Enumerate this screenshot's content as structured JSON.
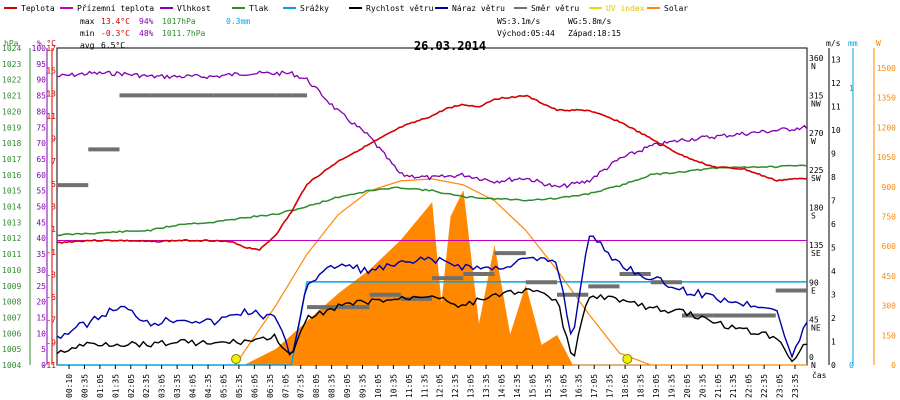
{
  "chart_data": {
    "type": "line",
    "title": "26.03.2014",
    "legend": [
      {
        "name": "Teplota",
        "color": "#d40000"
      },
      {
        "name": "Přízemní teplota",
        "color": "#c000c0"
      },
      {
        "name": "Vlhkost",
        "color": "#8000b0"
      },
      {
        "name": "Tlak",
        "color": "#2e8b2e"
      },
      {
        "name": "Srážky",
        "color": "#0aa0e0"
      },
      {
        "name": "Rychlost větru",
        "color": "#000000"
      },
      {
        "name": "Náraz větru",
        "color": "#0000aa"
      },
      {
        "name": "Směr větru",
        "color": "#707070"
      },
      {
        "name": "UV index",
        "color": "#e0e000"
      },
      {
        "name": "Solar",
        "color": "#ff8800"
      }
    ],
    "stats": {
      "max_label": "max",
      "max_temp": "13.4°C",
      "max_hum": "94%",
      "max_press": "1017hPa",
      "rain": "0.3mm",
      "min_label": "min",
      "min_temp": "-0.3°C",
      "min_hum": "48%",
      "min_press": "1011.7hPa",
      "avg_label": "avg",
      "avg_temp": "6.5°C",
      "ws": "WS:3.1m/s",
      "wg": "WG:5.8m/s",
      "sunrise": "Východ:05:44",
      "sunset": "Západ:18:15"
    },
    "left_axes": {
      "hpa": {
        "label": "hPa",
        "ticks": [
          "1024",
          "1023",
          "1022",
          "1021",
          "1020",
          "1019",
          "1018",
          "1017",
          "1016",
          "1015",
          "1014",
          "1013",
          "1012",
          "1011",
          "1010",
          "1009",
          "1008",
          "1007",
          "1006",
          "1005",
          "1004"
        ]
      },
      "pct": {
        "label": "%",
        "ticks": [
          "100",
          "95",
          "90",
          "85",
          "80",
          "75",
          "70",
          "65",
          "60",
          "55",
          "50",
          "45",
          "40",
          "35",
          "30",
          "25",
          "20",
          "15",
          "10",
          "5",
          "0"
        ]
      },
      "temp": {
        "label": "°C",
        "ticks": [
          "17",
          "15",
          "13",
          "11",
          "9",
          "7",
          "5",
          "3",
          "1",
          "-1",
          "-3",
          "-5",
          "-7",
          "-9",
          "-11"
        ]
      }
    },
    "right_axes": {
      "ms": {
        "label": "m/s",
        "ticks": [
          "13",
          "12",
          "11",
          "10",
          "9",
          "8",
          "7",
          "6",
          "5",
          "4",
          "3",
          "2",
          "1",
          "0"
        ]
      },
      "dir": {
        "ticks": [
          "360",
          "315",
          "270",
          "225",
          "180",
          "135",
          "90",
          "45",
          "0"
        ],
        "letters": [
          "N",
          "NW",
          "W",
          "SW",
          "S",
          "SE",
          "E",
          "NE",
          "N"
        ]
      },
      "mm": {
        "label": "mm",
        "ticks": [
          "1",
          "0"
        ]
      },
      "w": {
        "label": "W",
        "ticks": [
          "1500",
          "1350",
          "1200",
          "1050",
          "900",
          "750",
          "600",
          "450",
          "300",
          "150",
          "0"
        ]
      }
    },
    "xlabel": "čas",
    "x_ticks": [
      "00:10",
      "00:35",
      "01:05",
      "01:35",
      "02:05",
      "02:35",
      "03:05",
      "03:35",
      "04:05",
      "04:35",
      "05:05",
      "05:35",
      "06:05",
      "06:35",
      "07:05",
      "07:35",
      "08:05",
      "08:35",
      "09:05",
      "09:35",
      "10:05",
      "10:35",
      "11:05",
      "11:35",
      "12:05",
      "12:35",
      "13:05",
      "13:35",
      "14:05",
      "14:35",
      "15:05",
      "15:35",
      "16:05",
      "16:35",
      "17:05",
      "17:35",
      "18:05",
      "18:35",
      "19:05",
      "19:35",
      "20:05",
      "20:35",
      "21:05",
      "21:35",
      "22:05",
      "22:35",
      "23:05",
      "23:35"
    ],
    "series": {
      "temperature": {
        "unit": "°C",
        "t": [
          0,
          1,
          2,
          3,
          4,
          5,
          5.7,
          6,
          6.5,
          7,
          7.5,
          8,
          9,
          10,
          11,
          12,
          12.5,
          13,
          13.5,
          14,
          15,
          16,
          17,
          18,
          19,
          20,
          21,
          22,
          23,
          24
        ],
        "v": [
          -0.2,
          0,
          0,
          -0.1,
          0,
          0,
          -0.2,
          -0.6,
          -0.8,
          0.5,
          2.5,
          5,
          7,
          8.5,
          10,
          11,
          11.7,
          12,
          11.8,
          12.5,
          12.8,
          11.5,
          11.5,
          10.5,
          9,
          7.5,
          6.5,
          6.3,
          5.3,
          5.5
        ]
      },
      "humidity": {
        "unit": "%",
        "t": [
          0,
          1,
          2,
          3,
          4,
          5,
          6,
          7,
          7.5,
          8,
          9,
          10,
          11,
          12,
          13,
          14,
          15,
          16,
          17,
          18,
          19,
          20,
          21,
          22,
          23,
          24
        ],
        "v": [
          91,
          92,
          92,
          91,
          91,
          91,
          92,
          92,
          92,
          90,
          80,
          72,
          60,
          59,
          60,
          58,
          59,
          56,
          58,
          65,
          69,
          71,
          72,
          73,
          74,
          75
        ]
      },
      "pressure": {
        "unit": "hPa",
        "t": [
          0,
          1,
          2,
          3,
          4,
          5,
          6,
          7,
          8,
          9,
          10,
          11,
          12,
          13,
          14,
          15,
          16,
          17,
          18,
          19,
          20,
          21,
          22,
          23,
          24
        ],
        "v": [
          1012.2,
          1012.3,
          1012.4,
          1012.5,
          1012.9,
          1013.0,
          1013.3,
          1013.5,
          1014.0,
          1014.6,
          1015.0,
          1015.2,
          1015.0,
          1014.6,
          1014.5,
          1014.4,
          1014.5,
          1014.8,
          1015.3,
          1016.0,
          1016.2,
          1016.4,
          1016.5,
          1016.5,
          1016.6
        ]
      },
      "wind_speed": {
        "unit": "m/s",
        "t": [
          0,
          1,
          2,
          3,
          4,
          5,
          6,
          7,
          7.5,
          8,
          9,
          10,
          11,
          12,
          13,
          14,
          15,
          16,
          16.5,
          17,
          18,
          19,
          20,
          21,
          22,
          23,
          23.5,
          24
        ],
        "v": [
          0.5,
          0.9,
          0.9,
          0.9,
          1,
          0.9,
          1,
          1.2,
          0.3,
          2,
          2.5,
          2.7,
          2.8,
          3,
          2.5,
          3,
          3.2,
          2.8,
          0.1,
          3,
          2.8,
          2.4,
          2.3,
          1.8,
          1.5,
          1.2,
          0.2,
          1
        ]
      },
      "wind_gust": {
        "unit": "m/s",
        "t": [
          0,
          1,
          2,
          3,
          4,
          5,
          6,
          7,
          7.5,
          8,
          9,
          10,
          11,
          12,
          13,
          14,
          15,
          16,
          16.5,
          17,
          18,
          19,
          20,
          21,
          22,
          23,
          23.5,
          24
        ],
        "v": [
          1.2,
          1.8,
          2.5,
          1.8,
          2,
          1.8,
          2.3,
          2,
          0.3,
          3.5,
          4.3,
          4.0,
          4.3,
          4.5,
          4.2,
          4.1,
          4.5,
          4.4,
          1,
          5.6,
          4.3,
          3.7,
          3.2,
          2.9,
          2.6,
          2.5,
          0.3,
          1.8
        ]
      },
      "wind_dir": {
        "unit": "°",
        "t": [
          0,
          1,
          2,
          3,
          4,
          5,
          6,
          7,
          7.5,
          8,
          9,
          10,
          11,
          12,
          13,
          14,
          15,
          16,
          17,
          18,
          19,
          20,
          21,
          22,
          23,
          24
        ],
        "v": [
          207,
          250,
          315,
          315,
          315,
          315,
          315,
          315,
          315,
          60,
          60,
          75,
          70,
          95,
          100,
          125,
          90,
          75,
          85,
          100,
          90,
          50,
          50,
          50,
          80,
          80
        ]
      },
      "solar": {
        "unit": "W",
        "t": [
          5,
          6,
          7,
          8,
          9,
          10,
          11,
          12,
          12.3,
          12.6,
          13,
          13.5,
          14,
          14.5,
          15,
          15.5,
          16,
          16.5,
          17,
          18,
          19,
          20,
          24
        ],
        "v": [
          0,
          0,
          80,
          220,
          360,
          480,
          630,
          820,
          300,
          750,
          880,
          200,
          600,
          150,
          400,
          100,
          150,
          0,
          0,
          0,
          0,
          0,
          0
        ]
      },
      "solar_theoretical": {
        "unit": "W",
        "t": [
          5.7,
          7,
          8,
          9,
          10,
          11,
          12,
          13,
          14,
          15,
          16,
          17,
          18,
          19,
          24
        ],
        "v": [
          0,
          300,
          560,
          760,
          880,
          930,
          940,
          910,
          830,
          680,
          480,
          260,
          60,
          0,
          0
        ]
      },
      "rain": {
        "unit": "mm",
        "t": [
          0,
          7.5,
          8,
          24
        ],
        "v": [
          0,
          0,
          0.3,
          0.3
        ]
      },
      "sunrise_marker": {
        "t": 5.73
      },
      "sunset_marker": {
        "t": 18.25
      }
    }
  }
}
